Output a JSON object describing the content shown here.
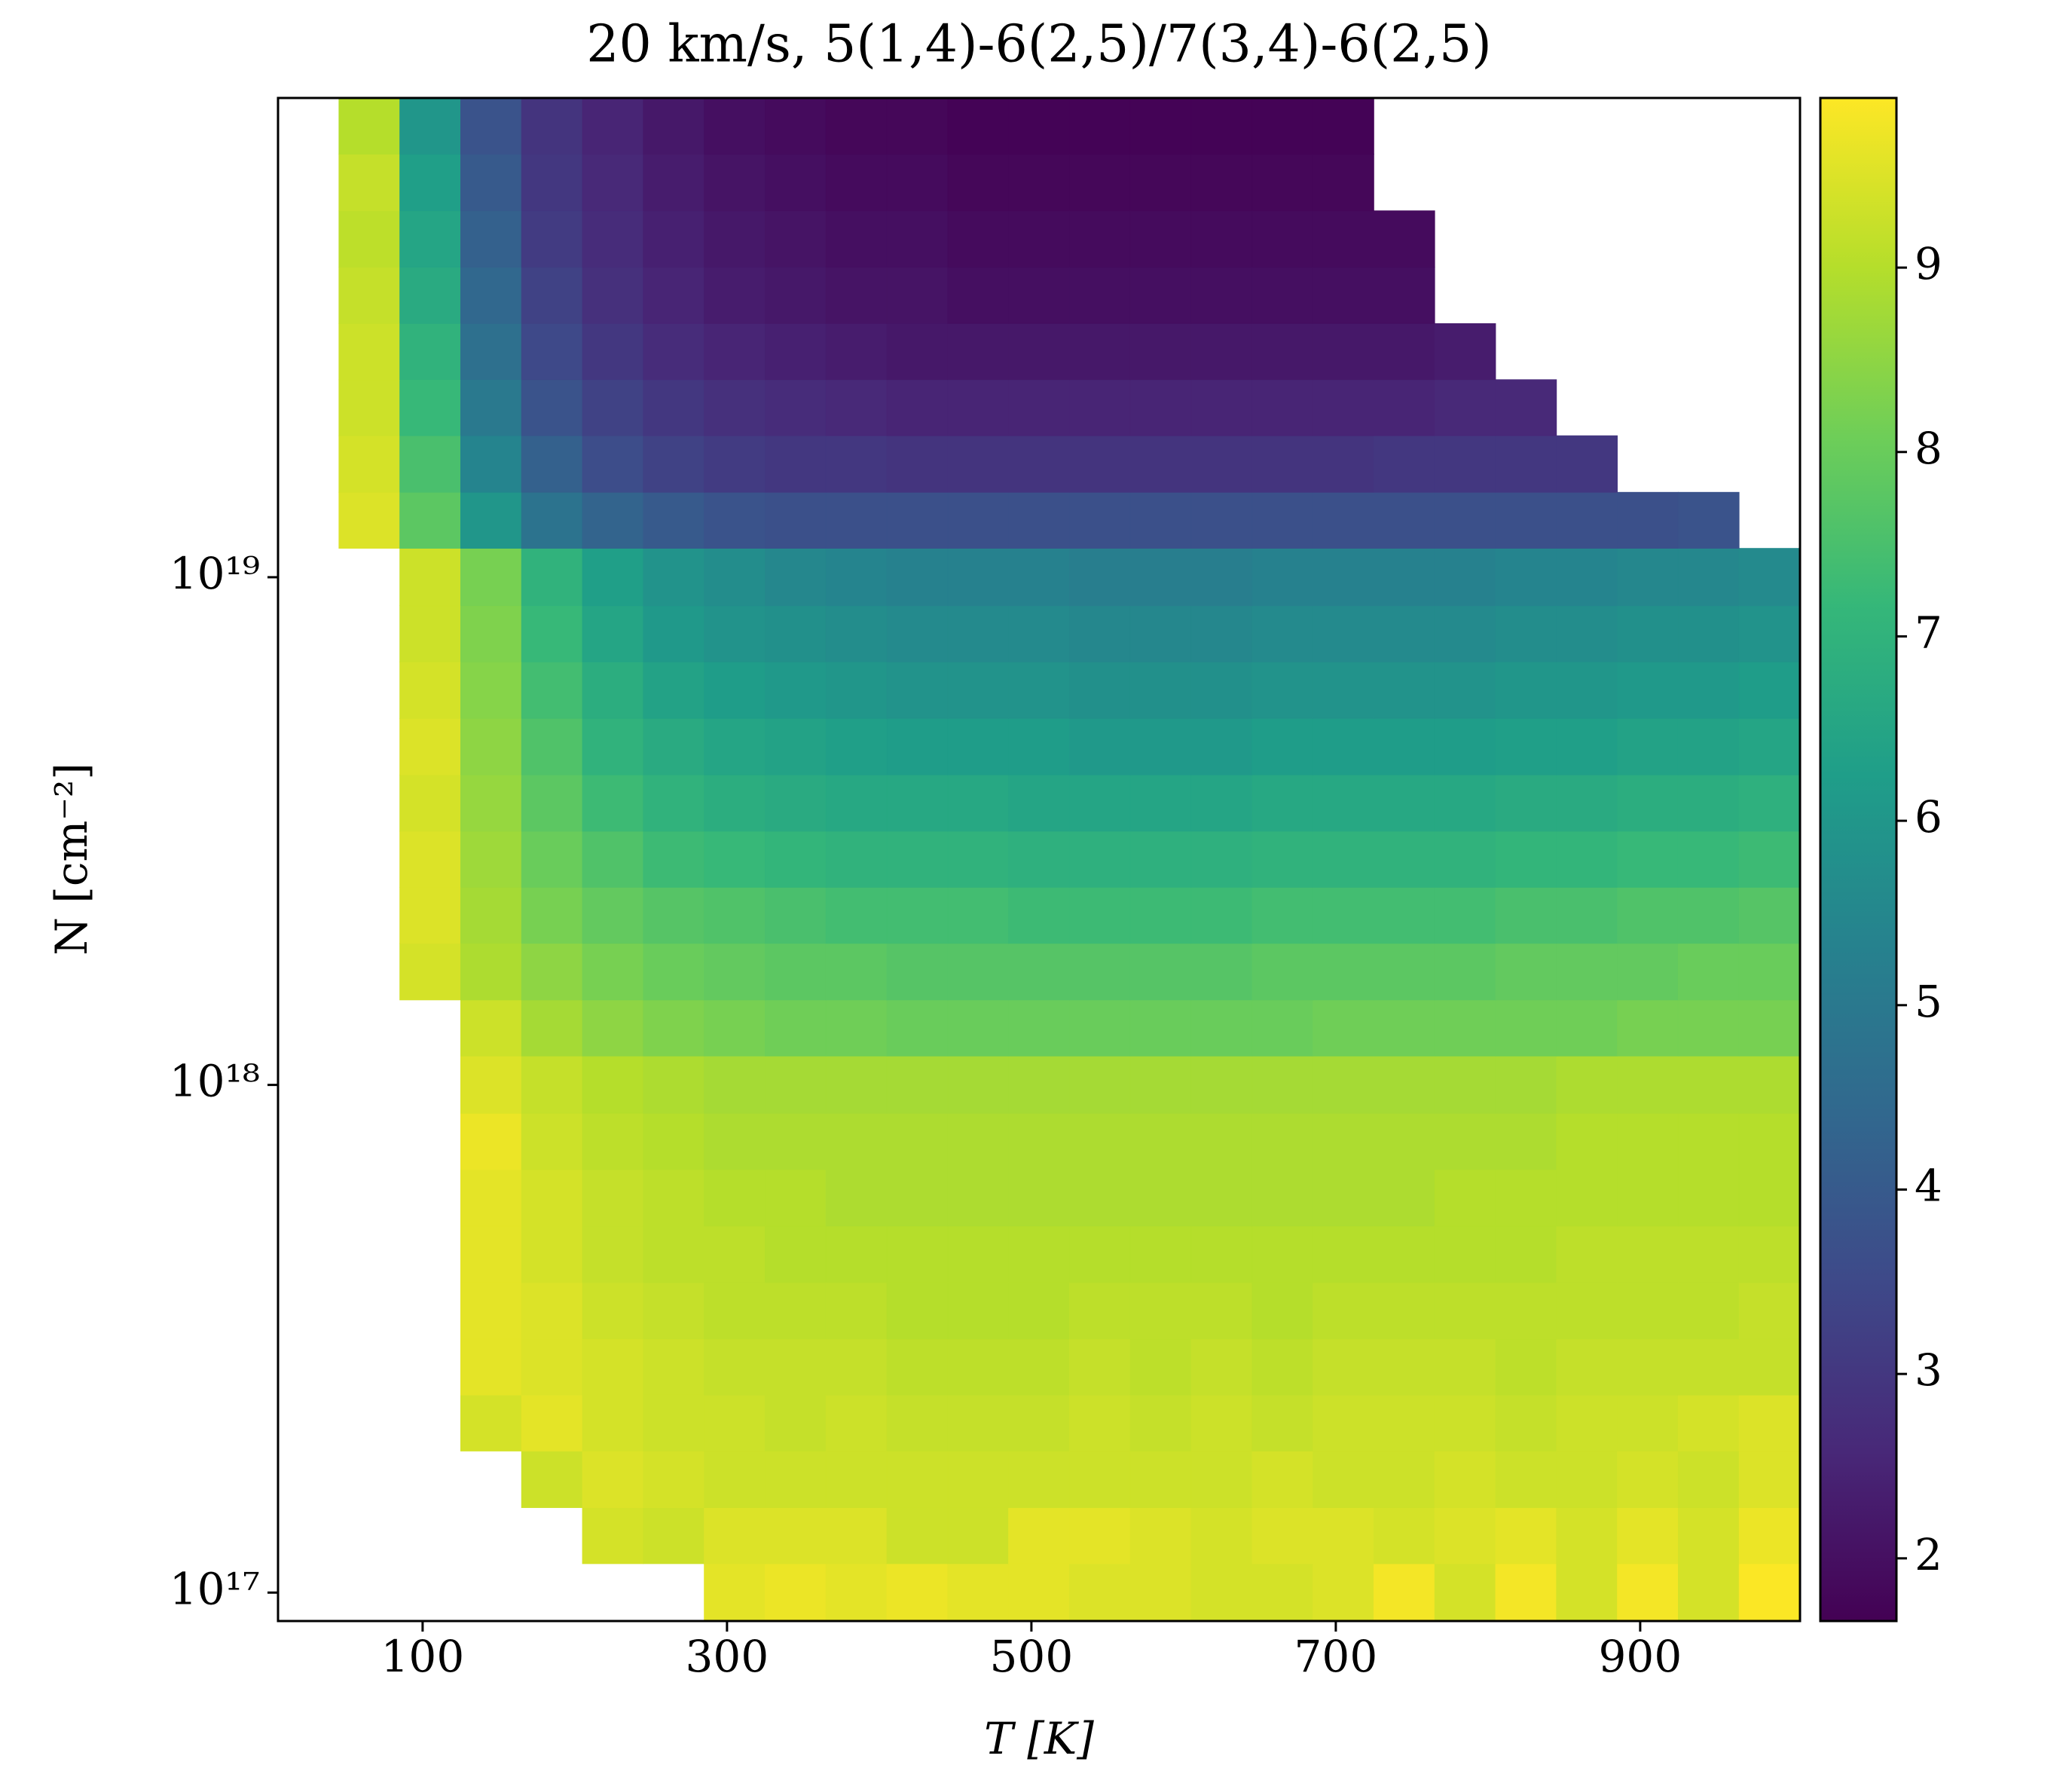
{
  "chart_data": {
    "type": "heatmap",
    "title": "20 km/s, 5(1,4)-6(2,5)/7(3,4)-6(2,5)",
    "xlabel": "T [K]",
    "ylabel": "N [cm⁻²]",
    "x_bins": [
      5,
      45,
      85,
      125,
      165,
      205,
      245,
      285,
      325,
      365,
      405,
      445,
      485,
      525,
      565,
      605,
      645,
      685,
      725,
      765,
      805,
      845,
      885,
      925,
      965,
      1005
    ],
    "y_bins": [
      8.79e+16,
      1.14e+17,
      1.47e+17,
      1.9e+17,
      2.45e+17,
      3.16e+17,
      4.08e+17,
      5.27e+17,
      6.81e+17,
      8.79e+17,
      1.14e+18,
      1.47e+18,
      1.9e+18,
      2.45e+18,
      3.16e+18,
      4.08e+18,
      5.27e+18,
      6.81e+18,
      8.79e+18,
      1.14e+19,
      1.47e+19,
      1.9e+19,
      2.45e+19,
      3.16e+19,
      4.08e+19,
      5.27e+19,
      6.81e+19,
      8.79e+19
    ],
    "values": [
      [
        null,
        null,
        null,
        null,
        null,
        null,
        null,
        9.6,
        9.7,
        9.6,
        9.7,
        9.6,
        9.6,
        9.5,
        9.5,
        9.4,
        9.4,
        9.5,
        9.8,
        9.4,
        9.8,
        9.4,
        9.8,
        9.4,
        9.9
      ],
      [
        null,
        null,
        null,
        null,
        null,
        9.4,
        9.3,
        9.5,
        9.5,
        9.5,
        9.3,
        9.3,
        9.6,
        9.6,
        9.5,
        9.4,
        9.5,
        9.5,
        9.4,
        9.5,
        9.6,
        9.4,
        9.6,
        9.4,
        9.7
      ],
      [
        null,
        null,
        null,
        null,
        9.3,
        9.5,
        9.4,
        9.3,
        9.3,
        9.3,
        9.3,
        9.3,
        9.3,
        9.3,
        9.3,
        9.3,
        9.4,
        9.3,
        9.3,
        9.4,
        9.3,
        9.3,
        9.4,
        9.3,
        9.5
      ],
      [
        null,
        null,
        null,
        9.4,
        9.6,
        9.4,
        9.3,
        9.3,
        9.2,
        9.3,
        9.2,
        9.2,
        9.2,
        9.3,
        9.2,
        9.3,
        9.2,
        9.3,
        9.3,
        9.3,
        9.2,
        9.3,
        9.3,
        9.4,
        9.5
      ],
      [
        null,
        null,
        null,
        9.6,
        9.5,
        9.4,
        9.3,
        9.2,
        9.2,
        9.2,
        9.1,
        9.1,
        9.1,
        9.2,
        9.1,
        9.2,
        9.1,
        9.2,
        9.2,
        9.2,
        9.1,
        9.2,
        9.2,
        9.2,
        9.2
      ],
      [
        null,
        null,
        null,
        9.6,
        9.5,
        9.3,
        9.2,
        9.1,
        9.1,
        9.1,
        9.0,
        9.0,
        9.0,
        9.1,
        9.1,
        9.1,
        9.0,
        9.1,
        9.1,
        9.1,
        9.1,
        9.1,
        9.1,
        9.1,
        9.2
      ],
      [
        null,
        null,
        null,
        9.6,
        9.4,
        9.2,
        9.1,
        9.1,
        9.0,
        9.0,
        9.0,
        9.0,
        9.0,
        9.0,
        9.0,
        9.0,
        9.0,
        9.0,
        9.0,
        9.0,
        9.0,
        9.1,
        9.1,
        9.1,
        9.1
      ],
      [
        null,
        null,
        null,
        9.6,
        9.4,
        9.2,
        9.1,
        9.0,
        9.0,
        8.9,
        8.9,
        8.9,
        8.9,
        8.9,
        8.9,
        8.9,
        8.9,
        8.9,
        8.9,
        9.0,
        9.0,
        9.0,
        9.0,
        9.0,
        9.0
      ],
      [
        null,
        null,
        null,
        9.7,
        9.3,
        9.1,
        9.0,
        8.9,
        8.9,
        8.9,
        8.9,
        8.9,
        8.9,
        8.9,
        8.9,
        8.9,
        8.9,
        8.9,
        8.9,
        8.9,
        8.9,
        9.0,
        9.0,
        9.0,
        9.0
      ],
      [
        null,
        null,
        null,
        9.5,
        9.2,
        9.0,
        8.9,
        8.8,
        8.8,
        8.8,
        8.8,
        8.8,
        8.8,
        8.8,
        8.8,
        8.8,
        8.8,
        8.8,
        8.8,
        8.8,
        8.8,
        8.9,
        8.9,
        8.9,
        8.9
      ],
      [
        null,
        null,
        null,
        9.3,
        8.8,
        8.5,
        8.3,
        8.2,
        8.1,
        8.1,
        8.0,
        8.0,
        8.0,
        8.0,
        8.0,
        8.0,
        8.0,
        8.1,
        8.1,
        8.1,
        8.1,
        8.1,
        8.2,
        8.2,
        8.2
      ],
      [
        null,
        null,
        9.4,
        8.9,
        8.5,
        8.2,
        8.0,
        7.9,
        7.8,
        7.8,
        7.7,
        7.7,
        7.7,
        7.7,
        7.7,
        7.7,
        7.8,
        7.8,
        7.8,
        7.8,
        7.9,
        7.9,
        7.9,
        8.0,
        8.0
      ],
      [
        null,
        null,
        9.5,
        8.8,
        8.2,
        7.9,
        7.7,
        7.6,
        7.5,
        7.4,
        7.4,
        7.4,
        7.3,
        7.3,
        7.3,
        7.3,
        7.4,
        7.4,
        7.4,
        7.4,
        7.5,
        7.5,
        7.6,
        7.6,
        7.7
      ],
      [
        null,
        null,
        9.5,
        8.7,
        8.0,
        7.6,
        7.3,
        7.2,
        7.1,
        7.0,
        7.0,
        7.0,
        6.9,
        6.9,
        6.9,
        6.9,
        7.0,
        7.0,
        7.0,
        7.0,
        7.1,
        7.1,
        7.2,
        7.2,
        7.3
      ],
      [
        null,
        null,
        9.4,
        8.6,
        7.8,
        7.3,
        7.0,
        6.8,
        6.7,
        6.6,
        6.6,
        6.6,
        6.5,
        6.5,
        6.5,
        6.5,
        6.6,
        6.6,
        6.6,
        6.6,
        6.7,
        6.7,
        6.8,
        6.8,
        6.9
      ],
      [
        null,
        null,
        9.5,
        8.5,
        7.6,
        7.0,
        6.7,
        6.5,
        6.4,
        6.3,
        6.2,
        6.2,
        6.2,
        6.1,
        6.1,
        6.1,
        6.2,
        6.2,
        6.2,
        6.2,
        6.3,
        6.3,
        6.4,
        6.4,
        6.5
      ],
      [
        null,
        null,
        9.4,
        8.4,
        7.4,
        6.8,
        6.4,
        6.2,
        6.1,
        6.0,
        5.9,
        5.9,
        5.9,
        5.8,
        5.8,
        5.8,
        5.9,
        5.9,
        5.9,
        5.9,
        6.0,
        6.0,
        6.1,
        6.1,
        6.2
      ],
      [
        null,
        null,
        9.3,
        8.3,
        7.2,
        6.5,
        6.1,
        5.9,
        5.8,
        5.7,
        5.6,
        5.6,
        5.6,
        5.5,
        5.5,
        5.5,
        5.6,
        5.6,
        5.6,
        5.6,
        5.7,
        5.7,
        5.8,
        5.8,
        5.9
      ],
      [
        null,
        null,
        9.3,
        8.2,
        7.0,
        6.3,
        5.9,
        5.7,
        5.5,
        5.4,
        5.3,
        5.3,
        5.3,
        5.2,
        5.2,
        5.2,
        5.3,
        5.3,
        5.3,
        5.3,
        5.4,
        5.4,
        5.5,
        5.5,
        5.6
      ],
      [
        null,
        9.5,
        7.8,
        6.0,
        4.8,
        4.3,
        4.0,
        3.8,
        3.7,
        3.7,
        3.7,
        3.7,
        3.7,
        3.7,
        3.7,
        3.7,
        3.7,
        3.7,
        3.7,
        3.7,
        3.7,
        3.7,
        3.7,
        3.8,
        null
      ],
      [
        null,
        9.4,
        7.5,
        5.4,
        4.2,
        3.6,
        3.3,
        3.1,
        3.0,
        3.0,
        2.9,
        2.9,
        2.9,
        2.9,
        2.9,
        2.9,
        2.9,
        2.9,
        3.0,
        3.0,
        3.0,
        3.0,
        null,
        null,
        null
      ],
      [
        null,
        9.3,
        7.2,
        5.0,
        3.8,
        3.3,
        3.0,
        2.8,
        2.7,
        2.6,
        2.5,
        2.5,
        2.5,
        2.5,
        2.5,
        2.5,
        2.5,
        2.5,
        2.5,
        2.6,
        2.6,
        null,
        null,
        null,
        null
      ],
      [
        null,
        9.3,
        7.0,
        4.7,
        3.5,
        3.0,
        2.7,
        2.5,
        2.4,
        2.3,
        2.2,
        2.2,
        2.2,
        2.2,
        2.2,
        2.2,
        2.2,
        2.2,
        2.2,
        2.3,
        null,
        null,
        null,
        null,
        null
      ],
      [
        null,
        9.2,
        6.7,
        4.4,
        3.3,
        2.8,
        2.5,
        2.3,
        2.2,
        2.1,
        2.1,
        2.0,
        2.0,
        2.0,
        2.0,
        2.0,
        2.0,
        2.0,
        2.0,
        null,
        null,
        null,
        null,
        null,
        null
      ],
      [
        null,
        9.1,
        6.5,
        4.2,
        3.1,
        2.7,
        2.4,
        2.2,
        2.1,
        2.0,
        2.0,
        1.9,
        1.9,
        1.9,
        1.9,
        1.9,
        1.9,
        1.9,
        1.9,
        null,
        null,
        null,
        null,
        null,
        null
      ],
      [
        null,
        9.2,
        6.3,
        4.0,
        3.0,
        2.6,
        2.3,
        2.1,
        2.0,
        1.9,
        1.9,
        1.8,
        1.8,
        1.8,
        1.8,
        1.8,
        1.8,
        1.8,
        null,
        null,
        null,
        null,
        null,
        null,
        null
      ],
      [
        null,
        9.0,
        6.0,
        3.8,
        2.9,
        2.5,
        2.2,
        2.0,
        1.9,
        1.8,
        1.8,
        1.7,
        1.7,
        1.7,
        1.7,
        1.7,
        1.7,
        1.7,
        null,
        null,
        null,
        null,
        null,
        null,
        null
      ]
    ],
    "xlim": [
      5,
      1005
    ],
    "ylim": [
      8.79e+16,
      8.79e+19
    ],
    "log_y": true,
    "xticks": [
      100,
      300,
      500,
      700,
      900
    ],
    "yticks": [
      {
        "value": 1e+17,
        "label": "10¹⁷"
      },
      {
        "value": 1e+18,
        "label": "10¹⁸"
      },
      {
        "value": 1e+19,
        "label": "10¹⁹"
      }
    ],
    "colormap": "viridis",
    "clim": [
      1.66,
      9.92
    ],
    "cticks": [
      2,
      3,
      4,
      5,
      6,
      7,
      8,
      9
    ]
  }
}
